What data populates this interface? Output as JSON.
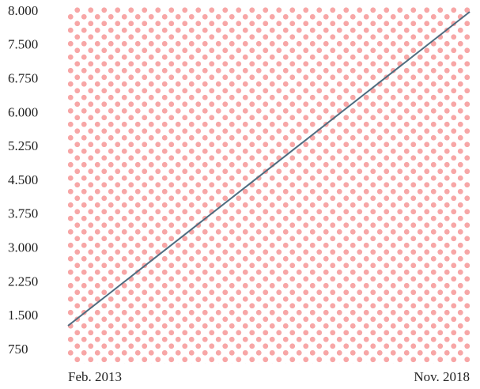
{
  "chart_data": {
    "type": "line",
    "title": "",
    "xlabel": "",
    "ylabel": "",
    "x": [
      "Feb. 2013",
      "Nov. 2018"
    ],
    "x_tick_labels": [
      "Feb. 2013",
      "Nov. 2018"
    ],
    "y_tick_labels": [
      "8.000",
      "7.500",
      "6.750",
      "6.000",
      "5.250",
      "4.500",
      "3.750",
      "3.000",
      "2.250",
      "1.500",
      "750"
    ],
    "y_tick_values": [
      8000,
      7500,
      6750,
      6000,
      5250,
      4500,
      3750,
      3000,
      2250,
      1500,
      750
    ],
    "ylim": [
      750,
      8000
    ],
    "highlighted_tick": "8.000",
    "grid": false,
    "legend": "none",
    "background": "pink dot pattern",
    "series": [
      {
        "values": [
          1300,
          8000
        ]
      }
    ],
    "colors": {
      "line": "#4f6d80",
      "highlight_tick": "#e03030",
      "tick": "#222222",
      "pattern_dot": "#f7a6a6"
    }
  }
}
